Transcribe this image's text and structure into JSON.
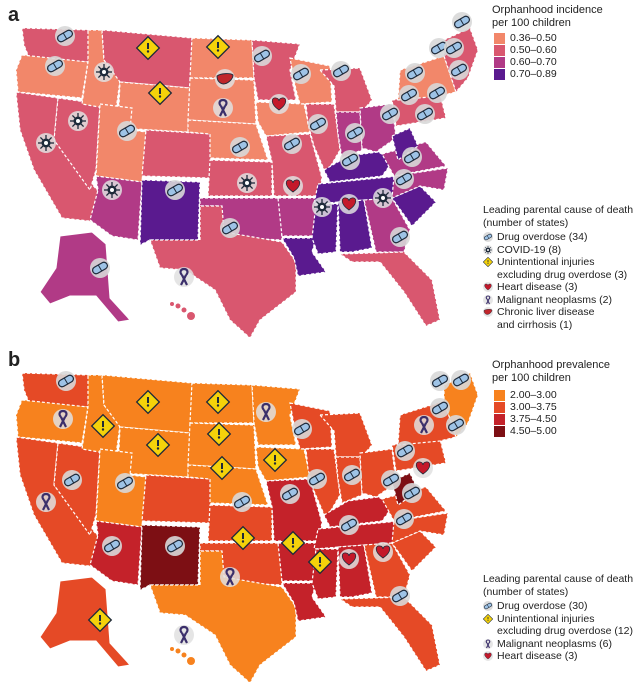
{
  "panel_a": {
    "letter": "a",
    "legend": {
      "title_line1": "Orphanhood incidence",
      "title_line2": "per 100 children",
      "bins": [
        {
          "label": "0.36–0.50",
          "color": "#f2876a"
        },
        {
          "label": "0.50–0.60",
          "color": "#d9576f"
        },
        {
          "label": "0.60–0.70",
          "color": "#b13a86"
        },
        {
          "label": "0.70–0.89",
          "color": "#5a1a8f"
        }
      ]
    },
    "causes": {
      "title_line1": "Leading parental cause of death",
      "title_line2": "(number of states)",
      "items": [
        {
          "label": "Drug overdose (34)",
          "icon": "pill-icon"
        },
        {
          "label": "COVID-19 (8)",
          "icon": "virus-icon"
        },
        {
          "label": "Unintentional injuries",
          "label2": "excluding drug overdose (3)",
          "icon": "warning-icon"
        },
        {
          "label": "Heart disease (3)",
          "icon": "heart-icon"
        },
        {
          "label": "Malignant neoplasms (2)",
          "icon": "ribbon-icon"
        },
        {
          "label": "Chronic liver disease",
          "label2": "and cirrhosis (1)",
          "icon": "liver-icon"
        }
      ]
    }
  },
  "panel_b": {
    "letter": "b",
    "legend": {
      "title_line1": "Orphanhood prevalence",
      "title_line2": "per 100 children",
      "bins": [
        {
          "label": "2.00–3.00",
          "color": "#f7821e"
        },
        {
          "label": "3.00–3.75",
          "color": "#e54a26"
        },
        {
          "label": "3.75–4.50",
          "color": "#c4222a"
        },
        {
          "label": "4.50–5.00",
          "color": "#7d0f14"
        }
      ]
    },
    "causes": {
      "title_line1": "Leading parental cause of death",
      "title_line2": "(number of states)",
      "items": [
        {
          "label": "Drug overdose (30)",
          "icon": "pill-icon"
        },
        {
          "label": "Unintentional injuries",
          "label2": "excluding drug overdose (12)",
          "icon": "warning-icon"
        },
        {
          "label": "Malignant neoplasms (6)",
          "icon": "ribbon-icon"
        },
        {
          "label": "Heart disease (3)",
          "icon": "heart-icon"
        }
      ]
    }
  }
}
